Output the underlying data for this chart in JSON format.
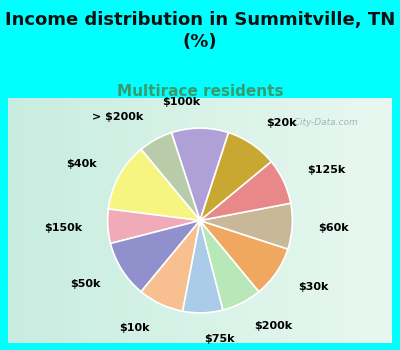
{
  "title": "Income distribution in Summitville, TN\n(%)",
  "subtitle": "Multirace residents",
  "title_fontsize": 13,
  "subtitle_fontsize": 11,
  "title_color": "#111111",
  "subtitle_color": "#3a9a6e",
  "background_color": "#00FFFF",
  "chart_bg_left": "#c8ede0",
  "chart_bg_right": "#e8f8f0",
  "watermark": "  City-Data.com",
  "labels": [
    "$100k",
    "> $200k",
    "$40k",
    "$150k",
    "$50k",
    "$10k",
    "$75k",
    "$200k",
    "$30k",
    "$60k",
    "$125k",
    "$20k"
  ],
  "values": [
    10,
    6,
    12,
    6,
    10,
    8,
    7,
    7,
    9,
    8,
    8,
    9
  ],
  "colors": [
    "#b0a0d8",
    "#b8ccaa",
    "#f5f580",
    "#f0aab8",
    "#9090cc",
    "#f8c090",
    "#aacce8",
    "#b8e8b8",
    "#f0a860",
    "#c8b898",
    "#e88888",
    "#c8a830"
  ],
  "label_fontsize": 8,
  "labeldistance": 1.28,
  "startangle": 72,
  "wedge_edgecolor": "white",
  "wedge_linewidth": 1.2
}
